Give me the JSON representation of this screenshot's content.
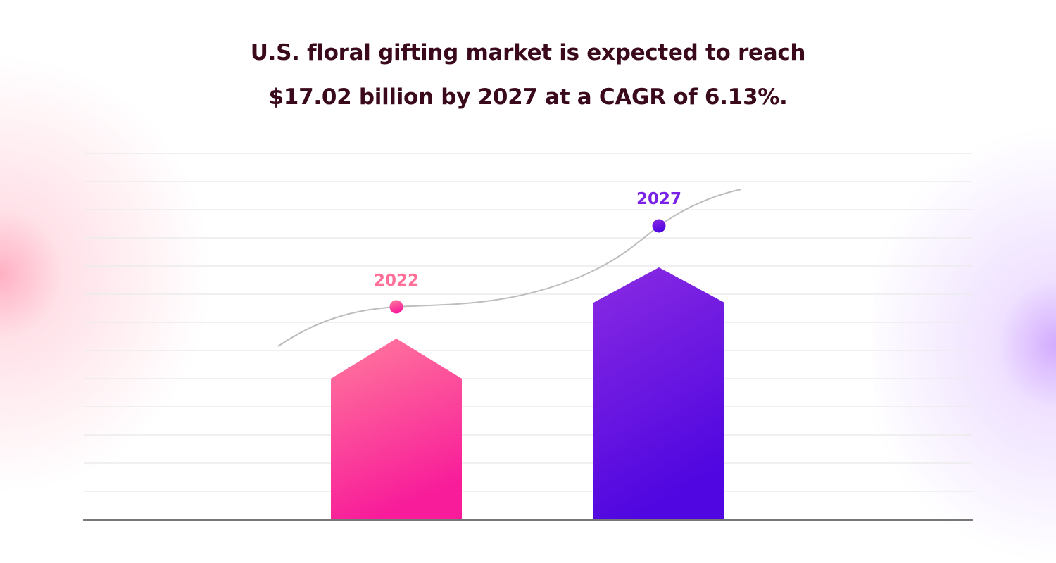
{
  "title": {
    "line1": "U.S. floral gifting market is expected to reach",
    "line2": "$17.02 billion by 2027 at a CAGR of 6.13%."
  },
  "chart_data": {
    "type": "bar",
    "title": "U.S. floral gifting market is expected to reach $17.02 billion by 2027 at a CAGR of 6.13%.",
    "categories": [
      "2022",
      "2027"
    ],
    "series": [
      {
        "label": "2022",
        "color_top": "#ff7a9c",
        "color_bottom": "#f81c9a",
        "label_color": "#ff6f98"
      },
      {
        "label": "2027",
        "color_top": "#8a2be2",
        "color_bottom": "#4f06e0",
        "label_color": "#7a22e6"
      }
    ],
    "trend_line": true,
    "grid": true,
    "xlabel": "",
    "ylabel": ""
  }
}
